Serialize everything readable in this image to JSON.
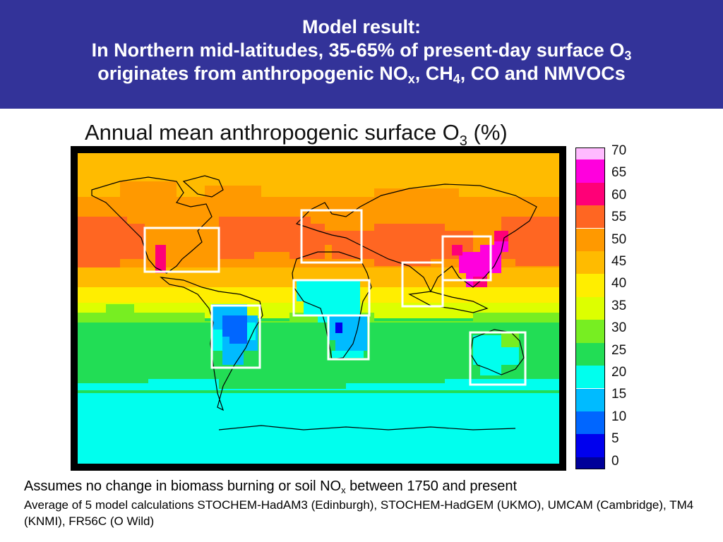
{
  "header": {
    "line1": "Model result:",
    "line2_pre": "In Northern mid-latitudes, 35-65% of present-day surface O",
    "line2_sub": "3",
    "line3_pre": "originates from anthropogenic NO",
    "line3_sub1": "x",
    "line3_mid": ", CH",
    "line3_sub2": "4",
    "line3_post": ", CO and NMVOCs",
    "background_color": "#333399"
  },
  "map": {
    "title_pre": "Annual mean anthropogenic surface O",
    "title_sub": "3",
    "title_post": " (%)",
    "outlined_regions": [
      "North America",
      "Europe",
      "North Africa",
      "East Asia",
      "India",
      "South America",
      "Southern Africa",
      "Australia"
    ]
  },
  "color_scale": {
    "labels": [
      "70",
      "65",
      "60",
      "55",
      "50",
      "45",
      "40",
      "35",
      "30",
      "25",
      "20",
      "15",
      "10",
      "5",
      "0"
    ],
    "colors": [
      "#ffbbff",
      "#ff00dd",
      "#ff0077",
      "#ff6622",
      "#ff9900",
      "#ffbb00",
      "#ffee00",
      "#ddff00",
      "#77ee22",
      "#22dd55",
      "#00ffee",
      "#00bbff",
      "#0066ff",
      "#0000ee",
      "#000099"
    ]
  },
  "footer": {
    "line1_pre": "Assumes no change in biomass burning or soil NO",
    "line1_sub": "x",
    "line1_post": " between 1750 and present",
    "line2": "Average of 5 model calculations STOCHEM-HadAM3 (Edinburgh), STOCHEM-HadGEM (UKMO), UMCAM (Cambridge), TM4 (KNMI), FR56C (O Wild)"
  }
}
